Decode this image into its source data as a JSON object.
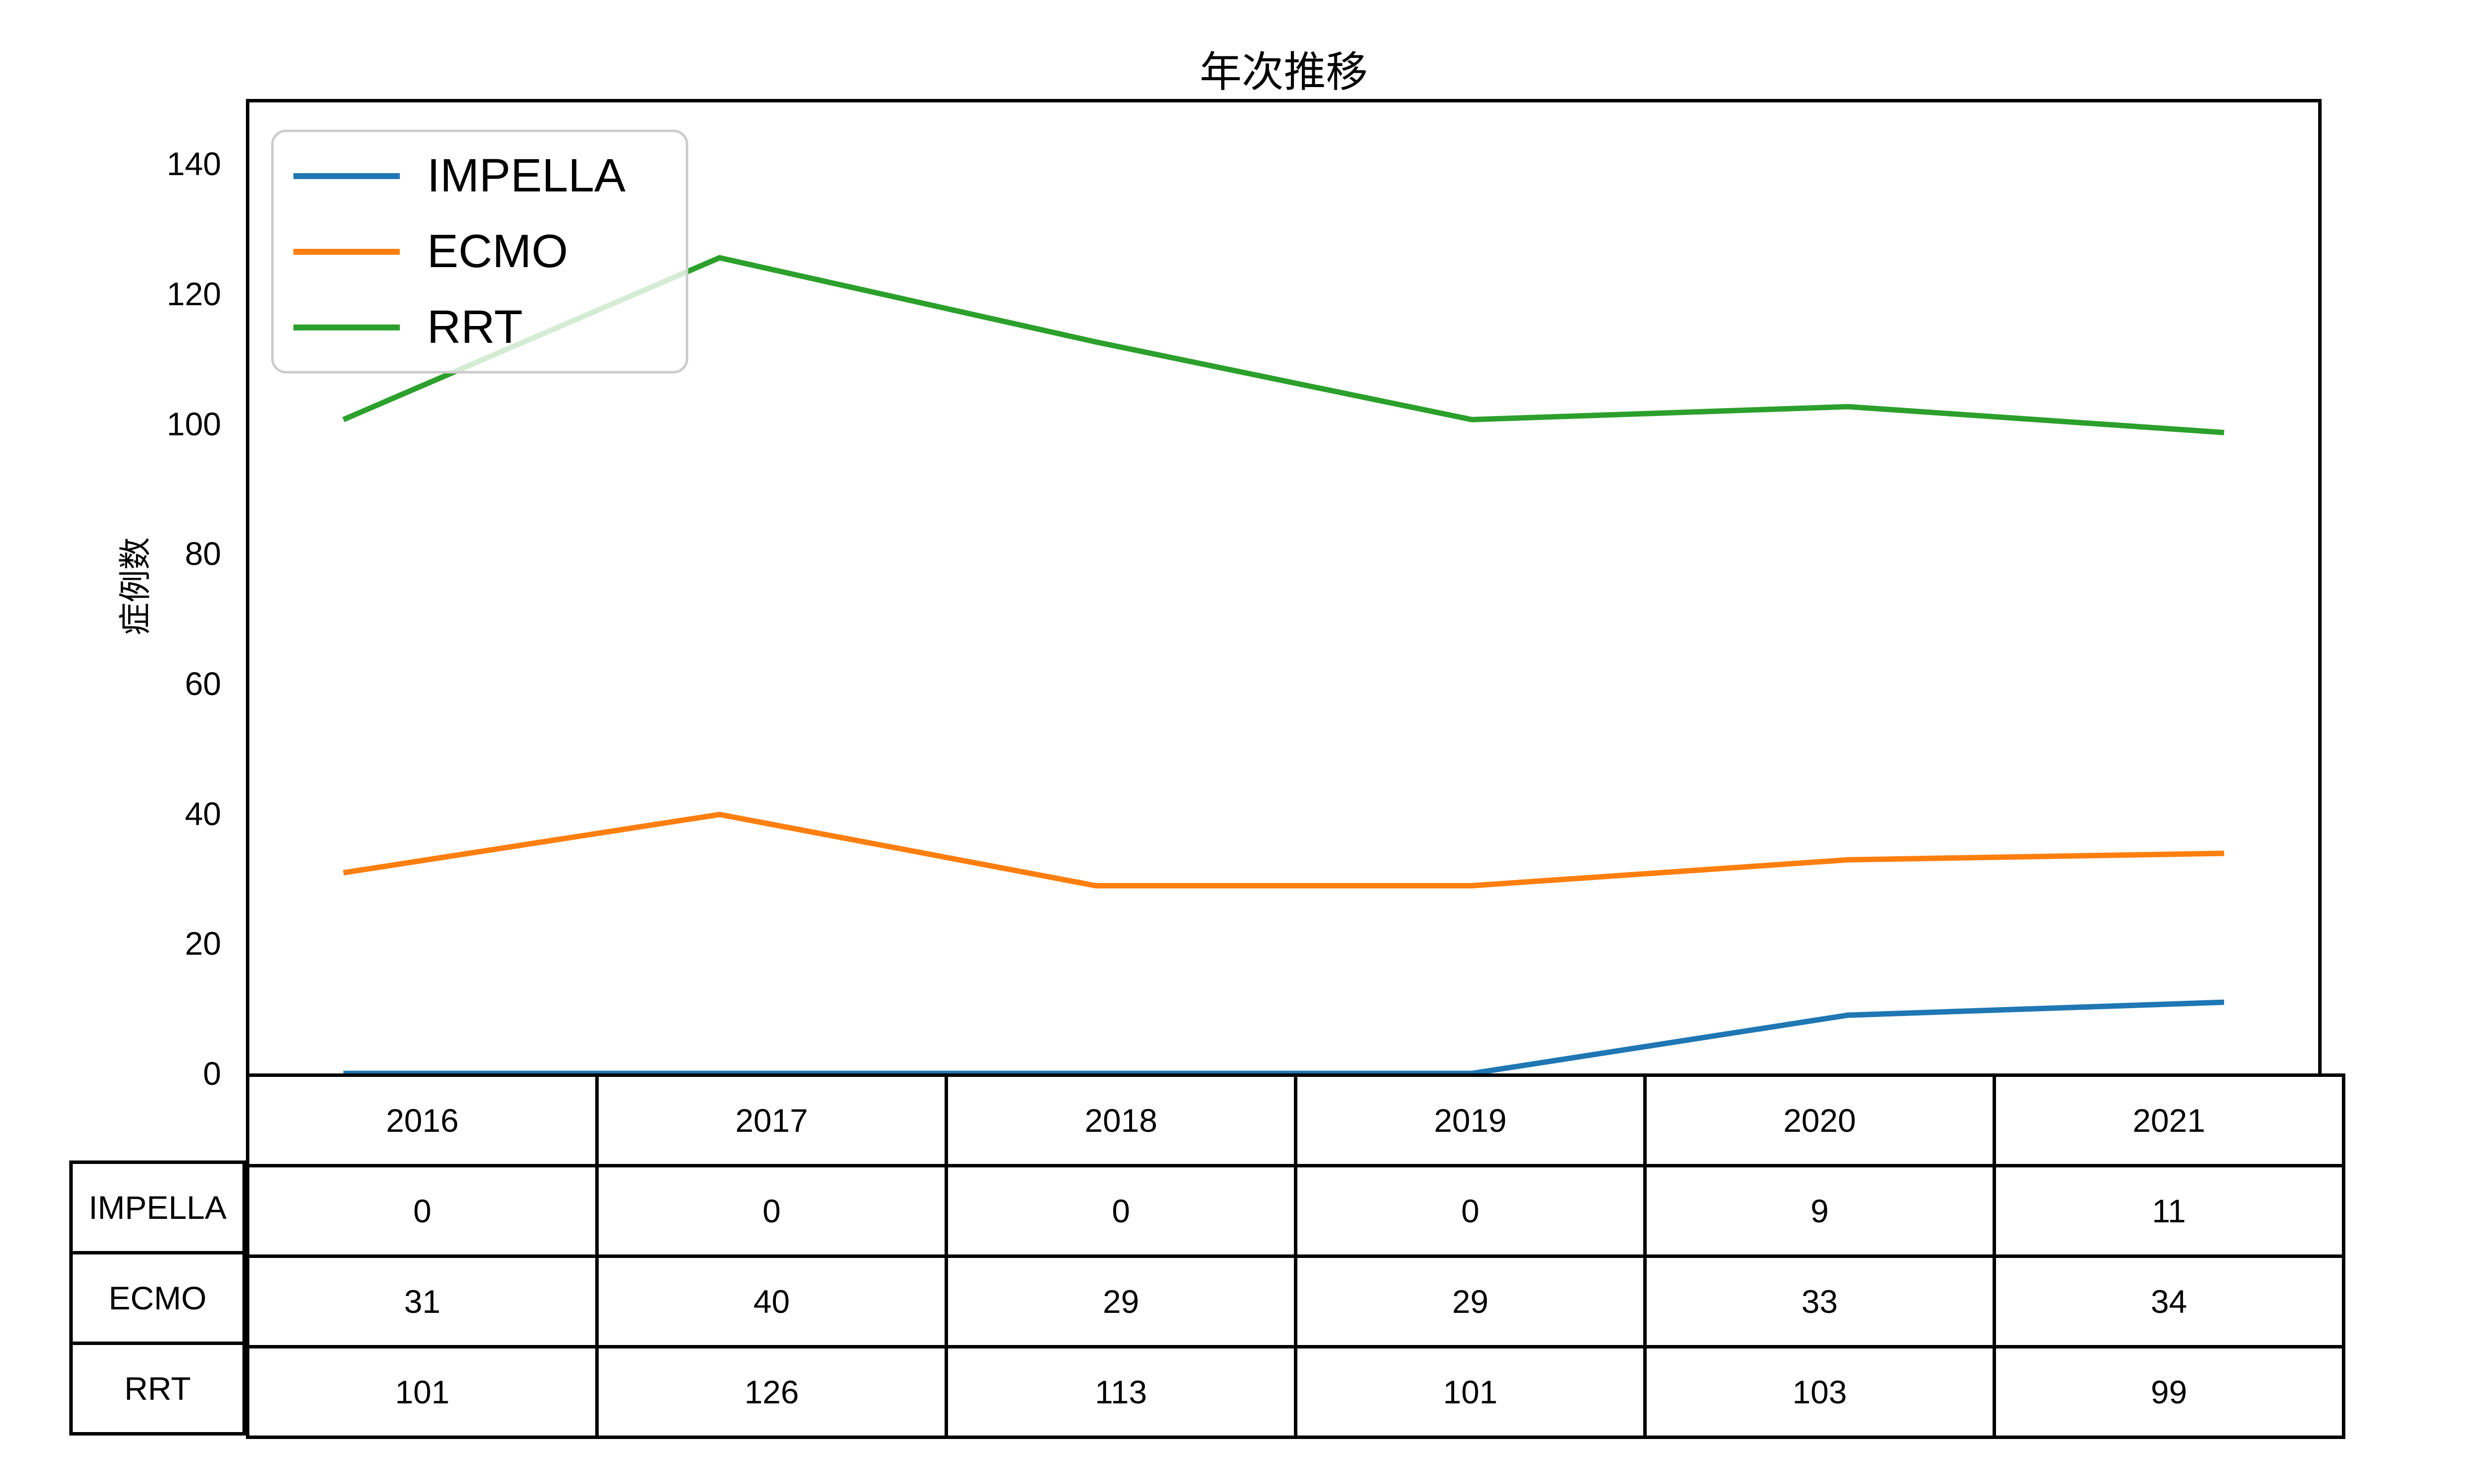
{
  "chart_data": {
    "type": "line",
    "title": "年次推移",
    "ylabel": "症例数",
    "categories": [
      "2016",
      "2017",
      "2018",
      "2019",
      "2020",
      "2021"
    ],
    "series": [
      {
        "name": "IMPELLA",
        "color": "#1f77b4",
        "values": [
          0,
          0,
          0,
          0,
          9,
          11
        ]
      },
      {
        "name": "ECMO",
        "color": "#ff7f0e",
        "values": [
          31,
          40,
          29,
          29,
          33,
          34
        ]
      },
      {
        "name": "RRT",
        "color": "#2ca02c",
        "values": [
          101,
          126,
          113,
          101,
          103,
          99
        ]
      }
    ],
    "yticks": [
      0,
      20,
      40,
      60,
      80,
      100,
      120,
      140
    ],
    "ylim": [
      0,
      150
    ],
    "grid": false,
    "legend_position": "upper left",
    "axis_color": "#000000",
    "legend_border_color": "#cccccc"
  },
  "table": {
    "header_row": [
      "2016",
      "2017",
      "2018",
      "2019",
      "2020",
      "2021"
    ],
    "row_labels": [
      "IMPELLA",
      "ECMO",
      "RRT"
    ],
    "rows": [
      [
        "0",
        "0",
        "0",
        "0",
        "9",
        "11"
      ],
      [
        "31",
        "40",
        "29",
        "29",
        "33",
        "34"
      ],
      [
        "101",
        "126",
        "113",
        "101",
        "103",
        "99"
      ]
    ]
  }
}
